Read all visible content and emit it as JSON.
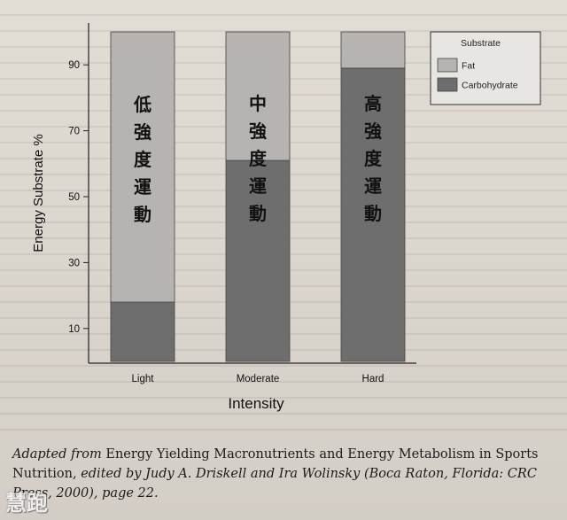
{
  "chart_data": {
    "type": "bar",
    "stacked": true,
    "categories": [
      "Light",
      "Moderate",
      "Hard"
    ],
    "category_annotations": [
      "低強度運動",
      "中強度運動",
      "高強度運動"
    ],
    "series": [
      {
        "name": "Carbohydrate",
        "values": [
          18,
          61,
          89
        ],
        "color": "#6e6e6e"
      },
      {
        "name": "Fat",
        "values": [
          82,
          39,
          11
        ],
        "color": "#b6b3b1"
      }
    ],
    "xlabel": "Intensity",
    "ylabel": "Energy Substrate %",
    "yticks": [
      10,
      30,
      50,
      70,
      90
    ],
    "ylim": [
      0,
      100
    ],
    "legend": {
      "title": "Substrate",
      "position": "top-right"
    },
    "grid": false
  },
  "caption": {
    "source_prefix": "Adapted from",
    "source_title": "Energy Yielding Macronutrients and Energy Metabolism in Sports Nutrition,",
    "source_rest": "edited by Judy A. Driskell and Ira Wolinsky (Boca Raton, Florida: CRC Press, 2000), page 22."
  },
  "watermark": "慧跑"
}
